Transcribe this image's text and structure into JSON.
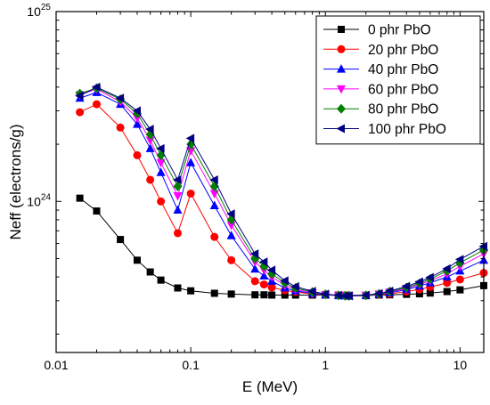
{
  "chart_data": {
    "type": "line",
    "title": "",
    "xlabel": "E (MeV)",
    "ylabel": "Neff (electrons/g)",
    "x_scale": "log",
    "y_scale": "log",
    "xlim": [
      0.01,
      15
    ],
    "ylim": [
      1.6e+23,
      1e+25
    ],
    "grid": false,
    "legend_position": "top-right",
    "x_ticks": [
      {
        "value": 0.01,
        "label": "0.01"
      },
      {
        "value": 0.1,
        "label": "0.1"
      },
      {
        "value": 1,
        "label": "1"
      },
      {
        "value": 10,
        "label": "10"
      }
    ],
    "y_ticks": [
      {
        "value": 1e+24,
        "base": "10",
        "exp": "24"
      },
      {
        "value": 1e+25,
        "base": "10",
        "exp": "25"
      }
    ],
    "x": [
      0.015,
      0.02,
      0.03,
      0.04,
      0.05,
      0.06,
      0.08,
      0.1,
      0.15,
      0.2,
      0.3,
      0.35,
      0.4,
      0.5,
      0.6,
      0.8,
      1.0,
      1.25,
      1.4,
      1.5,
      2.0,
      2.5,
      3.0,
      4.0,
      5.0,
      6.0,
      8.0,
      10.0,
      15.0
    ],
    "series": [
      {
        "name": "0 phr PbO",
        "color": "#000000",
        "marker": "square",
        "values": [
          1.04e+24,
          8.9e+23,
          6.3e+23,
          4.9e+23,
          4.25e+23,
          3.85e+23,
          3.5e+23,
          3.38e+23,
          3.28e+23,
          3.25e+23,
          3.22e+23,
          3.22e+23,
          3.21e+23,
          3.21e+23,
          3.21e+23,
          3.21e+23,
          3.21e+23,
          3.21e+23,
          3.2e+23,
          3.2e+23,
          3.2e+23,
          3.21e+23,
          3.22e+23,
          3.24e+23,
          3.26e+23,
          3.29e+23,
          3.35e+23,
          3.42e+23,
          3.6e+23
        ]
      },
      {
        "name": "20 phr PbO",
        "color": "#ff0000",
        "marker": "circle",
        "values": [
          2.95e+24,
          3.25e+24,
          2.45e+24,
          1.75e+24,
          1.3e+24,
          1e+24,
          6.8e+23,
          1.1e+24,
          6.5e+23,
          4.9e+23,
          3.8e+23,
          3.65e+23,
          3.52e+23,
          3.4e+23,
          3.33e+23,
          3.26e+23,
          3.22e+23,
          3.2e+23,
          3.19e+23,
          3.18e+23,
          3.19e+23,
          3.22e+23,
          3.26e+23,
          3.35e+23,
          3.44e+23,
          3.54e+23,
          3.72e+23,
          3.88e+23,
          4.2e+23
        ]
      },
      {
        "name": "40 phr PbO",
        "color": "#0000ff",
        "marker": "triangle-up",
        "values": [
          3.5e+24,
          3.75e+24,
          3.25e+24,
          2.55e+24,
          1.9e+24,
          1.42e+24,
          9e+23,
          1.6e+24,
          9.5e+23,
          6.6e+23,
          4.4e+23,
          4.05e+23,
          3.8e+23,
          3.5e+23,
          3.38e+23,
          3.27e+23,
          3.22e+23,
          3.19e+23,
          3.18e+23,
          3.18e+23,
          3.19e+23,
          3.24e+23,
          3.3e+23,
          3.43e+23,
          3.58e+23,
          3.73e+23,
          4e+23,
          4.3e+23,
          4.9e+23
        ]
      },
      {
        "name": "60 phr PbO",
        "color": "#ff00ff",
        "marker": "triangle-down",
        "values": [
          3.65e+24,
          3.9e+24,
          3.35e+24,
          2.75e+24,
          2.1e+24,
          1.6e+24,
          1.07e+24,
          1.85e+24,
          1.1e+24,
          7.5e+23,
          4.8e+23,
          4.35e+23,
          4e+23,
          3.62e+23,
          3.44e+23,
          3.3e+23,
          3.23e+23,
          3.2e+23,
          3.18e+23,
          3.18e+23,
          3.2e+23,
          3.25e+23,
          3.33e+23,
          3.48e+23,
          3.65e+23,
          3.82e+23,
          4.15e+23,
          4.55e+23,
          5.3e+23
        ]
      },
      {
        "name": "80 phr PbO",
        "color": "#008000",
        "marker": "diamond",
        "values": [
          3.7e+24,
          3.95e+24,
          3.45e+24,
          2.9e+24,
          2.25e+24,
          1.75e+24,
          1.2e+24,
          2e+24,
          1.2e+24,
          8e+23,
          5e+23,
          4.55e+23,
          4.15e+23,
          3.72e+23,
          3.5e+23,
          3.33e+23,
          3.24e+23,
          3.2e+23,
          3.18e+23,
          3.18e+23,
          3.2e+23,
          3.26e+23,
          3.35e+23,
          3.52e+23,
          3.7e+23,
          3.9e+23,
          4.3e+23,
          4.75e+23,
          5.55e+23
        ]
      },
      {
        "name": "100 phr PbO",
        "color": "#000080",
        "marker": "triangle-left",
        "values": [
          3.6e+24,
          4e+24,
          3.5e+24,
          3e+24,
          2.4e+24,
          1.9e+24,
          1.3e+24,
          2.15e+24,
          1.3e+24,
          8.6e+23,
          5.3e+23,
          4.8e+23,
          4.35e+23,
          3.82e+23,
          3.56e+23,
          3.36e+23,
          3.25e+23,
          3.2e+23,
          3.18e+23,
          3.18e+23,
          3.21e+23,
          3.27e+23,
          3.37e+23,
          3.57e+23,
          3.77e+23,
          3.98e+23,
          4.42e+23,
          4.95e+23,
          5.8e+23
        ]
      }
    ]
  }
}
